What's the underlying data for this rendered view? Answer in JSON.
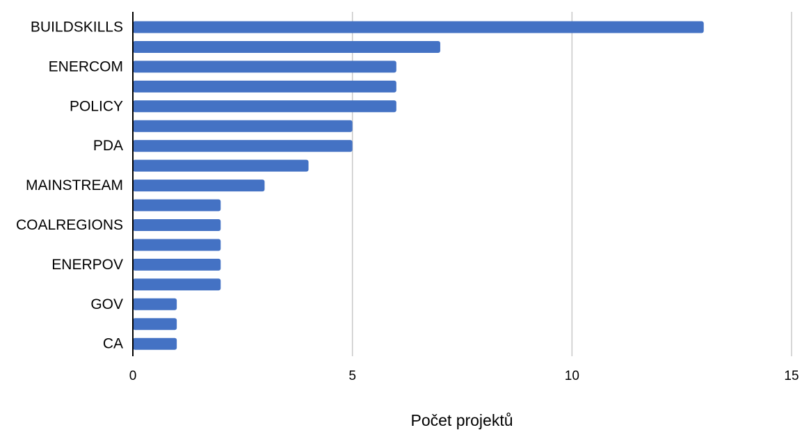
{
  "chart_data": {
    "type": "bar",
    "orientation": "horizontal",
    "categories": [
      "BUILDSKILLS",
      "",
      "ENERCOM",
      "",
      "POLICY",
      "",
      "PDA",
      "",
      "MAINSTREAM",
      "",
      "COALREGIONS",
      "",
      "ENERPOV",
      "",
      "GOV",
      "",
      "CA"
    ],
    "values": [
      13,
      7,
      6,
      6,
      6,
      5,
      5,
      4,
      3,
      2,
      2,
      2,
      2,
      2,
      1,
      1,
      1
    ],
    "xlabel": "Počet projektů",
    "ylabel": "",
    "xlim": [
      0,
      15
    ],
    "xticks": [
      "0",
      "5",
      "10",
      "15"
    ],
    "grid": "vertical",
    "bar_color": "#4472C4"
  }
}
